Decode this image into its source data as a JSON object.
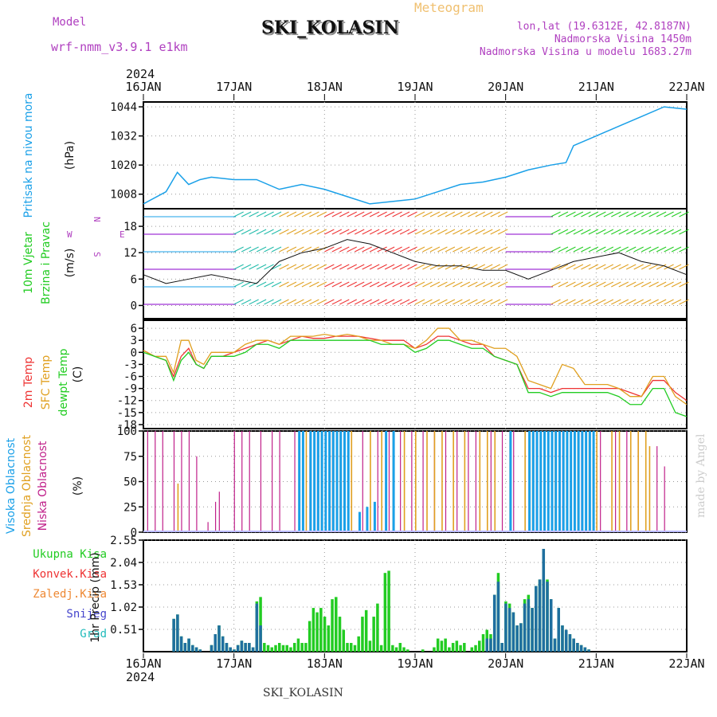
{
  "header": {
    "model_label": "Model",
    "model_name": "wrf-nmm_v3.9.1 e1km",
    "station": "SKI_KOLASIN",
    "meteogram": "Meteogram",
    "coords": "lon,lat (19.6312E, 42.8187N)",
    "elevation": "Nadmorska Visina 1450m",
    "model_elevation": "Nadmorska Visina u modelu 1683.27m",
    "year": "2024",
    "footer_station": "SKI_KOLASIN",
    "credit": "made by Angel"
  },
  "colors": {
    "pressure": "#1aa0e8",
    "t2m": "#ee3333",
    "sfc": "#e0a020",
    "dewpt": "#22cc22",
    "high_cloud": "#1aa0e8",
    "mid_cloud": "#e0a020",
    "low_cloud": "#c0208a",
    "total_precip": "#22cc22",
    "conv_precip": "#ee3333",
    "frz_precip": "#ee8833",
    "snow": "#4444cc",
    "grad": "#22bbbb",
    "grid": "#999999"
  },
  "chart_data": [
    {
      "type": "line",
      "panel": "pressure",
      "ylabel": "Pritisak na nivou mora",
      "unit": "(hPa)",
      "ylim": [
        1002,
        1046
      ],
      "yticks": [
        1008,
        1020,
        1032,
        1044
      ],
      "xticks": [
        "16JAN",
        "17JAN",
        "18JAN",
        "19JAN",
        "20JAN",
        "21JAN",
        "22JAN"
      ],
      "x_hours": [
        0,
        6,
        9,
        12,
        15,
        18,
        24,
        30,
        36,
        42,
        48,
        54,
        60,
        66,
        72,
        78,
        84,
        90,
        96,
        102,
        108,
        112,
        114,
        120,
        126,
        132,
        138,
        144
      ],
      "values": [
        1004,
        1009,
        1017,
        1012,
        1014,
        1015,
        1014,
        1014,
        1010,
        1012,
        1010,
        1007,
        1004,
        1005,
        1006,
        1009,
        1012,
        1013,
        1015,
        1018,
        1020,
        1021,
        1028,
        1032,
        1036,
        1040,
        1044,
        1043
      ]
    },
    {
      "type": "line",
      "panel": "wind",
      "ylabel": "10m Vjetar",
      "ylabel2": "Brzina i Pravac",
      "unit": "(m/s)",
      "compass": "N",
      "compass_w": "W",
      "compass_e": "E",
      "compass_s": "S",
      "ylim": [
        -3,
        22
      ],
      "yticks": [
        0,
        6,
        12,
        18
      ],
      "x_hours": [
        0,
        6,
        12,
        18,
        24,
        30,
        36,
        42,
        48,
        54,
        60,
        66,
        72,
        78,
        84,
        90,
        96,
        102,
        108,
        114,
        120,
        126,
        132,
        138,
        144
      ],
      "values": [
        7,
        5,
        6,
        7,
        6,
        5,
        10,
        12,
        13,
        15,
        14,
        12,
        10,
        9,
        9,
        8,
        8,
        6,
        8,
        10,
        11,
        12,
        10,
        9,
        7
      ]
    },
    {
      "type": "line",
      "panel": "temperature",
      "unit": "(C)",
      "ylim": [
        -19,
        8
      ],
      "yticks": [
        6,
        3,
        0,
        -3,
        -6,
        -9,
        -12,
        -15,
        -18
      ],
      "x_hours": [
        0,
        3,
        6,
        8,
        10,
        12,
        14,
        16,
        18,
        21,
        24,
        27,
        30,
        33,
        36,
        39,
        42,
        45,
        48,
        51,
        54,
        57,
        60,
        63,
        66,
        69,
        72,
        75,
        78,
        81,
        84,
        87,
        90,
        93,
        96,
        99,
        102,
        105,
        108,
        111,
        114,
        117,
        120,
        123,
        126,
        129,
        132,
        135,
        138,
        141,
        144
      ],
      "series": [
        {
          "name": "2m Temp",
          "values": [
            0.5,
            -1,
            -2,
            -6,
            -1,
            1,
            -3,
            -4,
            -1,
            -1,
            0,
            1,
            2,
            3,
            2,
            3,
            4,
            3.5,
            3.5,
            4,
            4,
            4,
            3.5,
            3,
            3,
            3,
            1,
            2,
            4,
            4,
            3,
            2,
            2,
            -1,
            -2,
            -3,
            -9,
            -9,
            -10,
            -9,
            -9,
            -9,
            -9,
            -9,
            -9,
            -10,
            -11,
            -7,
            -7,
            -10,
            -12
          ]
        },
        {
          "name": "SFC Temp",
          "values": [
            0.5,
            -1,
            -1,
            -5,
            3,
            3,
            -2,
            -3,
            0,
            0,
            0,
            2,
            3,
            3,
            2,
            4,
            4,
            4,
            4.5,
            4,
            4.5,
            4,
            3,
            3,
            2,
            2,
            1,
            3,
            6,
            6,
            3,
            3,
            2,
            1,
            1,
            -1,
            -7,
            -8,
            -9,
            -3,
            -4,
            -8,
            -8,
            -8,
            -9,
            -11,
            -11,
            -6,
            -6,
            -11,
            -13
          ]
        },
        {
          "name": "dewpt Temp",
          "values": [
            0,
            -1,
            -2,
            -7,
            -2,
            0,
            -3,
            -4,
            -1,
            -1,
            -1,
            0,
            2,
            2,
            1,
            3,
            3,
            3,
            3,
            3,
            3,
            3,
            3,
            2,
            2,
            2,
            0,
            1,
            3,
            3,
            2,
            1,
            1,
            -1,
            -2,
            -3,
            -10,
            -10,
            -11,
            -10,
            -10,
            -10,
            -10,
            -10,
            -11,
            -13,
            -13,
            -9,
            -9,
            -15,
            -16
          ]
        }
      ]
    },
    {
      "type": "bar",
      "panel": "cloud",
      "unit": "(%)",
      "ylim": [
        0,
        100
      ],
      "yticks": [
        0,
        25,
        50,
        75,
        100
      ],
      "series_labels": [
        "Visoka Oblacnost",
        "Srednja Oblacnost",
        "Niska Oblacnost"
      ],
      "low": [
        [
          1,
          100
        ],
        [
          3,
          100
        ],
        [
          5,
          100
        ],
        [
          8,
          100
        ],
        [
          10,
          100
        ],
        [
          12,
          100
        ],
        [
          14,
          75
        ],
        [
          17,
          10
        ],
        [
          19,
          30
        ],
        [
          20,
          40
        ],
        [
          24,
          100
        ],
        [
          26,
          100
        ],
        [
          28,
          100
        ],
        [
          31,
          100
        ],
        [
          34,
          100
        ],
        [
          36,
          100
        ],
        [
          40,
          100
        ],
        [
          44,
          100
        ],
        [
          46,
          100
        ],
        [
          50,
          100
        ],
        [
          55,
          100
        ],
        [
          58,
          100
        ],
        [
          62,
          100
        ],
        [
          65,
          100
        ],
        [
          68,
          100
        ],
        [
          71,
          100
        ],
        [
          74,
          100
        ],
        [
          77,
          100
        ],
        [
          80,
          100
        ],
        [
          83,
          100
        ],
        [
          86,
          100
        ],
        [
          88,
          100
        ],
        [
          92,
          100
        ],
        [
          95,
          100
        ],
        [
          98,
          100
        ],
        [
          104,
          100
        ],
        [
          108,
          100
        ],
        [
          111,
          100
        ],
        [
          116,
          100
        ],
        [
          121,
          100
        ],
        [
          125,
          100
        ],
        [
          128,
          100
        ],
        [
          131,
          100
        ],
        [
          136,
          85
        ],
        [
          138,
          65
        ]
      ],
      "mid": [
        [
          9,
          48
        ],
        [
          43,
          100
        ],
        [
          47,
          100
        ],
        [
          50,
          100
        ],
        [
          52,
          100
        ],
        [
          55,
          100
        ],
        [
          60,
          100
        ],
        [
          63,
          100
        ],
        [
          66,
          100
        ],
        [
          69,
          100
        ],
        [
          72,
          100
        ],
        [
          75,
          100
        ],
        [
          77,
          100
        ],
        [
          79,
          100
        ],
        [
          82,
          100
        ],
        [
          85,
          100
        ],
        [
          89,
          100
        ],
        [
          91,
          100
        ],
        [
          93,
          100
        ],
        [
          97,
          100
        ],
        [
          101,
          100
        ],
        [
          103,
          100
        ],
        [
          106,
          100
        ],
        [
          109,
          100
        ],
        [
          112,
          100
        ],
        [
          115,
          100
        ],
        [
          118,
          100
        ],
        [
          119,
          80
        ],
        [
          120,
          100
        ],
        [
          124,
          100
        ],
        [
          126,
          100
        ],
        [
          129,
          100
        ],
        [
          131,
          100
        ],
        [
          133,
          100
        ],
        [
          134,
          85
        ]
      ],
      "high": [
        [
          41,
          100
        ],
        [
          42,
          100
        ],
        [
          44,
          100
        ],
        [
          45,
          100
        ],
        [
          46,
          100
        ],
        [
          47,
          100
        ],
        [
          48,
          100
        ],
        [
          49,
          100
        ],
        [
          50,
          100
        ],
        [
          51,
          100
        ],
        [
          52,
          100
        ],
        [
          53,
          100
        ],
        [
          54,
          100
        ],
        [
          57,
          20
        ],
        [
          59,
          25
        ],
        [
          61,
          30
        ],
        [
          64,
          100
        ],
        [
          66,
          100
        ],
        [
          97,
          100
        ],
        [
          102,
          100
        ],
        [
          103,
          100
        ],
        [
          104,
          100
        ],
        [
          105,
          100
        ],
        [
          106,
          100
        ],
        [
          107,
          100
        ],
        [
          108,
          100
        ],
        [
          109,
          100
        ],
        [
          110,
          100
        ],
        [
          111,
          100
        ],
        [
          112,
          100
        ],
        [
          113,
          100
        ],
        [
          114,
          100
        ],
        [
          115,
          100
        ],
        [
          116,
          100
        ],
        [
          117,
          100
        ],
        [
          118,
          100
        ],
        [
          119,
          100
        ]
      ]
    },
    {
      "type": "bar",
      "panel": "precip",
      "unit": "1hr Precip (mm)",
      "ylim": [
        0,
        2.55
      ],
      "yticks": [
        0.51,
        1.02,
        1.53,
        2.04,
        2.55
      ],
      "series_labels": [
        "Ukupna Kisa",
        "Konvek.Kisa",
        "Zaledj.Kisa",
        "Snijeg",
        "Grad"
      ],
      "x_hours": [
        1,
        2,
        3,
        4,
        5,
        6,
        7,
        8,
        9,
        10,
        11,
        12,
        13,
        14,
        15,
        16,
        17,
        18,
        19,
        20,
        21,
        22,
        23,
        24,
        25,
        26,
        27,
        28,
        29,
        30,
        31,
        32,
        33,
        34,
        35,
        36,
        37,
        38,
        39,
        40,
        41,
        42,
        43,
        44,
        45,
        46,
        47,
        48,
        49,
        50,
        51,
        52,
        53,
        54,
        55,
        56,
        57,
        58,
        59,
        60,
        61,
        62,
        63,
        64,
        65,
        66,
        67,
        68,
        69,
        70,
        71,
        72,
        73,
        74,
        75,
        76,
        77,
        78,
        79,
        80,
        81,
        82,
        83,
        84,
        85,
        86,
        87,
        88,
        89,
        90,
        91,
        92,
        93,
        94,
        95,
        96,
        97,
        98,
        99,
        100,
        101,
        102,
        103,
        104,
        105,
        106,
        107,
        108,
        109,
        110,
        111,
        112,
        113,
        114,
        115,
        116,
        117,
        118,
        119,
        120,
        121,
        122,
        123,
        124,
        125,
        126,
        127,
        128,
        129,
        130,
        131,
        132,
        133,
        134,
        135,
        136,
        137
      ],
      "total": [
        0,
        0,
        0,
        0,
        0,
        0,
        0,
        0.75,
        0.85,
        0.35,
        0.2,
        0.3,
        0.15,
        0.1,
        0.05,
        0,
        0,
        0.15,
        0.4,
        0.6,
        0.35,
        0.2,
        0.1,
        0.05,
        0.15,
        0.25,
        0.2,
        0.2,
        0.1,
        1.15,
        1.25,
        0.2,
        0.15,
        0.1,
        0.15,
        0.2,
        0.15,
        0.15,
        0.1,
        0.2,
        0.3,
        0.2,
        0.2,
        0.7,
        1.0,
        0.9,
        1.0,
        0.8,
        0.6,
        1.2,
        1.25,
        0.8,
        0.5,
        0.2,
        0.2,
        0.15,
        0.35,
        0.8,
        0.95,
        0.25,
        0.8,
        1.1,
        0.15,
        1.8,
        1.85,
        0.15,
        0.1,
        0.2,
        0.1,
        0.05,
        0,
        0,
        0,
        0.05,
        0,
        0,
        0.1,
        0.3,
        0.25,
        0.3,
        0.1,
        0.2,
        0.25,
        0.15,
        0.2,
        0,
        0.1,
        0.15,
        0.25,
        0.4,
        0.5,
        0.4,
        1.3,
        1.8,
        0.2,
        1.15,
        1.1,
        0.9,
        0.6,
        0.65,
        1.2,
        1.3,
        1.0,
        1.5,
        1.65,
        2.35,
        1.65,
        1.2,
        0.3,
        1.0,
        0.6,
        0.5,
        0.4,
        0.3,
        0.2,
        0.15,
        0.1,
        0.05,
        0,
        0,
        0,
        0,
        0,
        0,
        0,
        0,
        0,
        0,
        0,
        0,
        0,
        0,
        0,
        0,
        0,
        0
      ],
      "snow": [
        0,
        0,
        0,
        0,
        0,
        0,
        0,
        0.75,
        0.85,
        0.35,
        0.2,
        0.3,
        0.15,
        0.1,
        0.05,
        0,
        0,
        0.15,
        0.4,
        0.6,
        0.35,
        0.2,
        0.1,
        0.05,
        0.15,
        0.25,
        0.2,
        0.2,
        0.1,
        1.1,
        0.6,
        0,
        0,
        0,
        0,
        0,
        0,
        0,
        0,
        0,
        0,
        0,
        0,
        0,
        0,
        0,
        0,
        0,
        0,
        0,
        0,
        0,
        0,
        0,
        0,
        0,
        0,
        0,
        0,
        0,
        0,
        0,
        0,
        0,
        0,
        0,
        0,
        0,
        0,
        0,
        0,
        0,
        0,
        0,
        0,
        0,
        0,
        0,
        0,
        0,
        0,
        0,
        0,
        0,
        0,
        0,
        0,
        0,
        0,
        0,
        0.3,
        0.3,
        1.3,
        1.6,
        0.2,
        1.1,
        1.0,
        0.9,
        0.6,
        0.65,
        1.1,
        1.2,
        1.0,
        1.5,
        1.65,
        2.35,
        1.6,
        1.2,
        0.3,
        1.0,
        0.6,
        0.5,
        0.4,
        0.3,
        0.2,
        0.15,
        0.1,
        0.05,
        0,
        0,
        0,
        0,
        0,
        0,
        0,
        0,
        0,
        0,
        0,
        0,
        0,
        0,
        0,
        0,
        0,
        0
      ]
    }
  ]
}
